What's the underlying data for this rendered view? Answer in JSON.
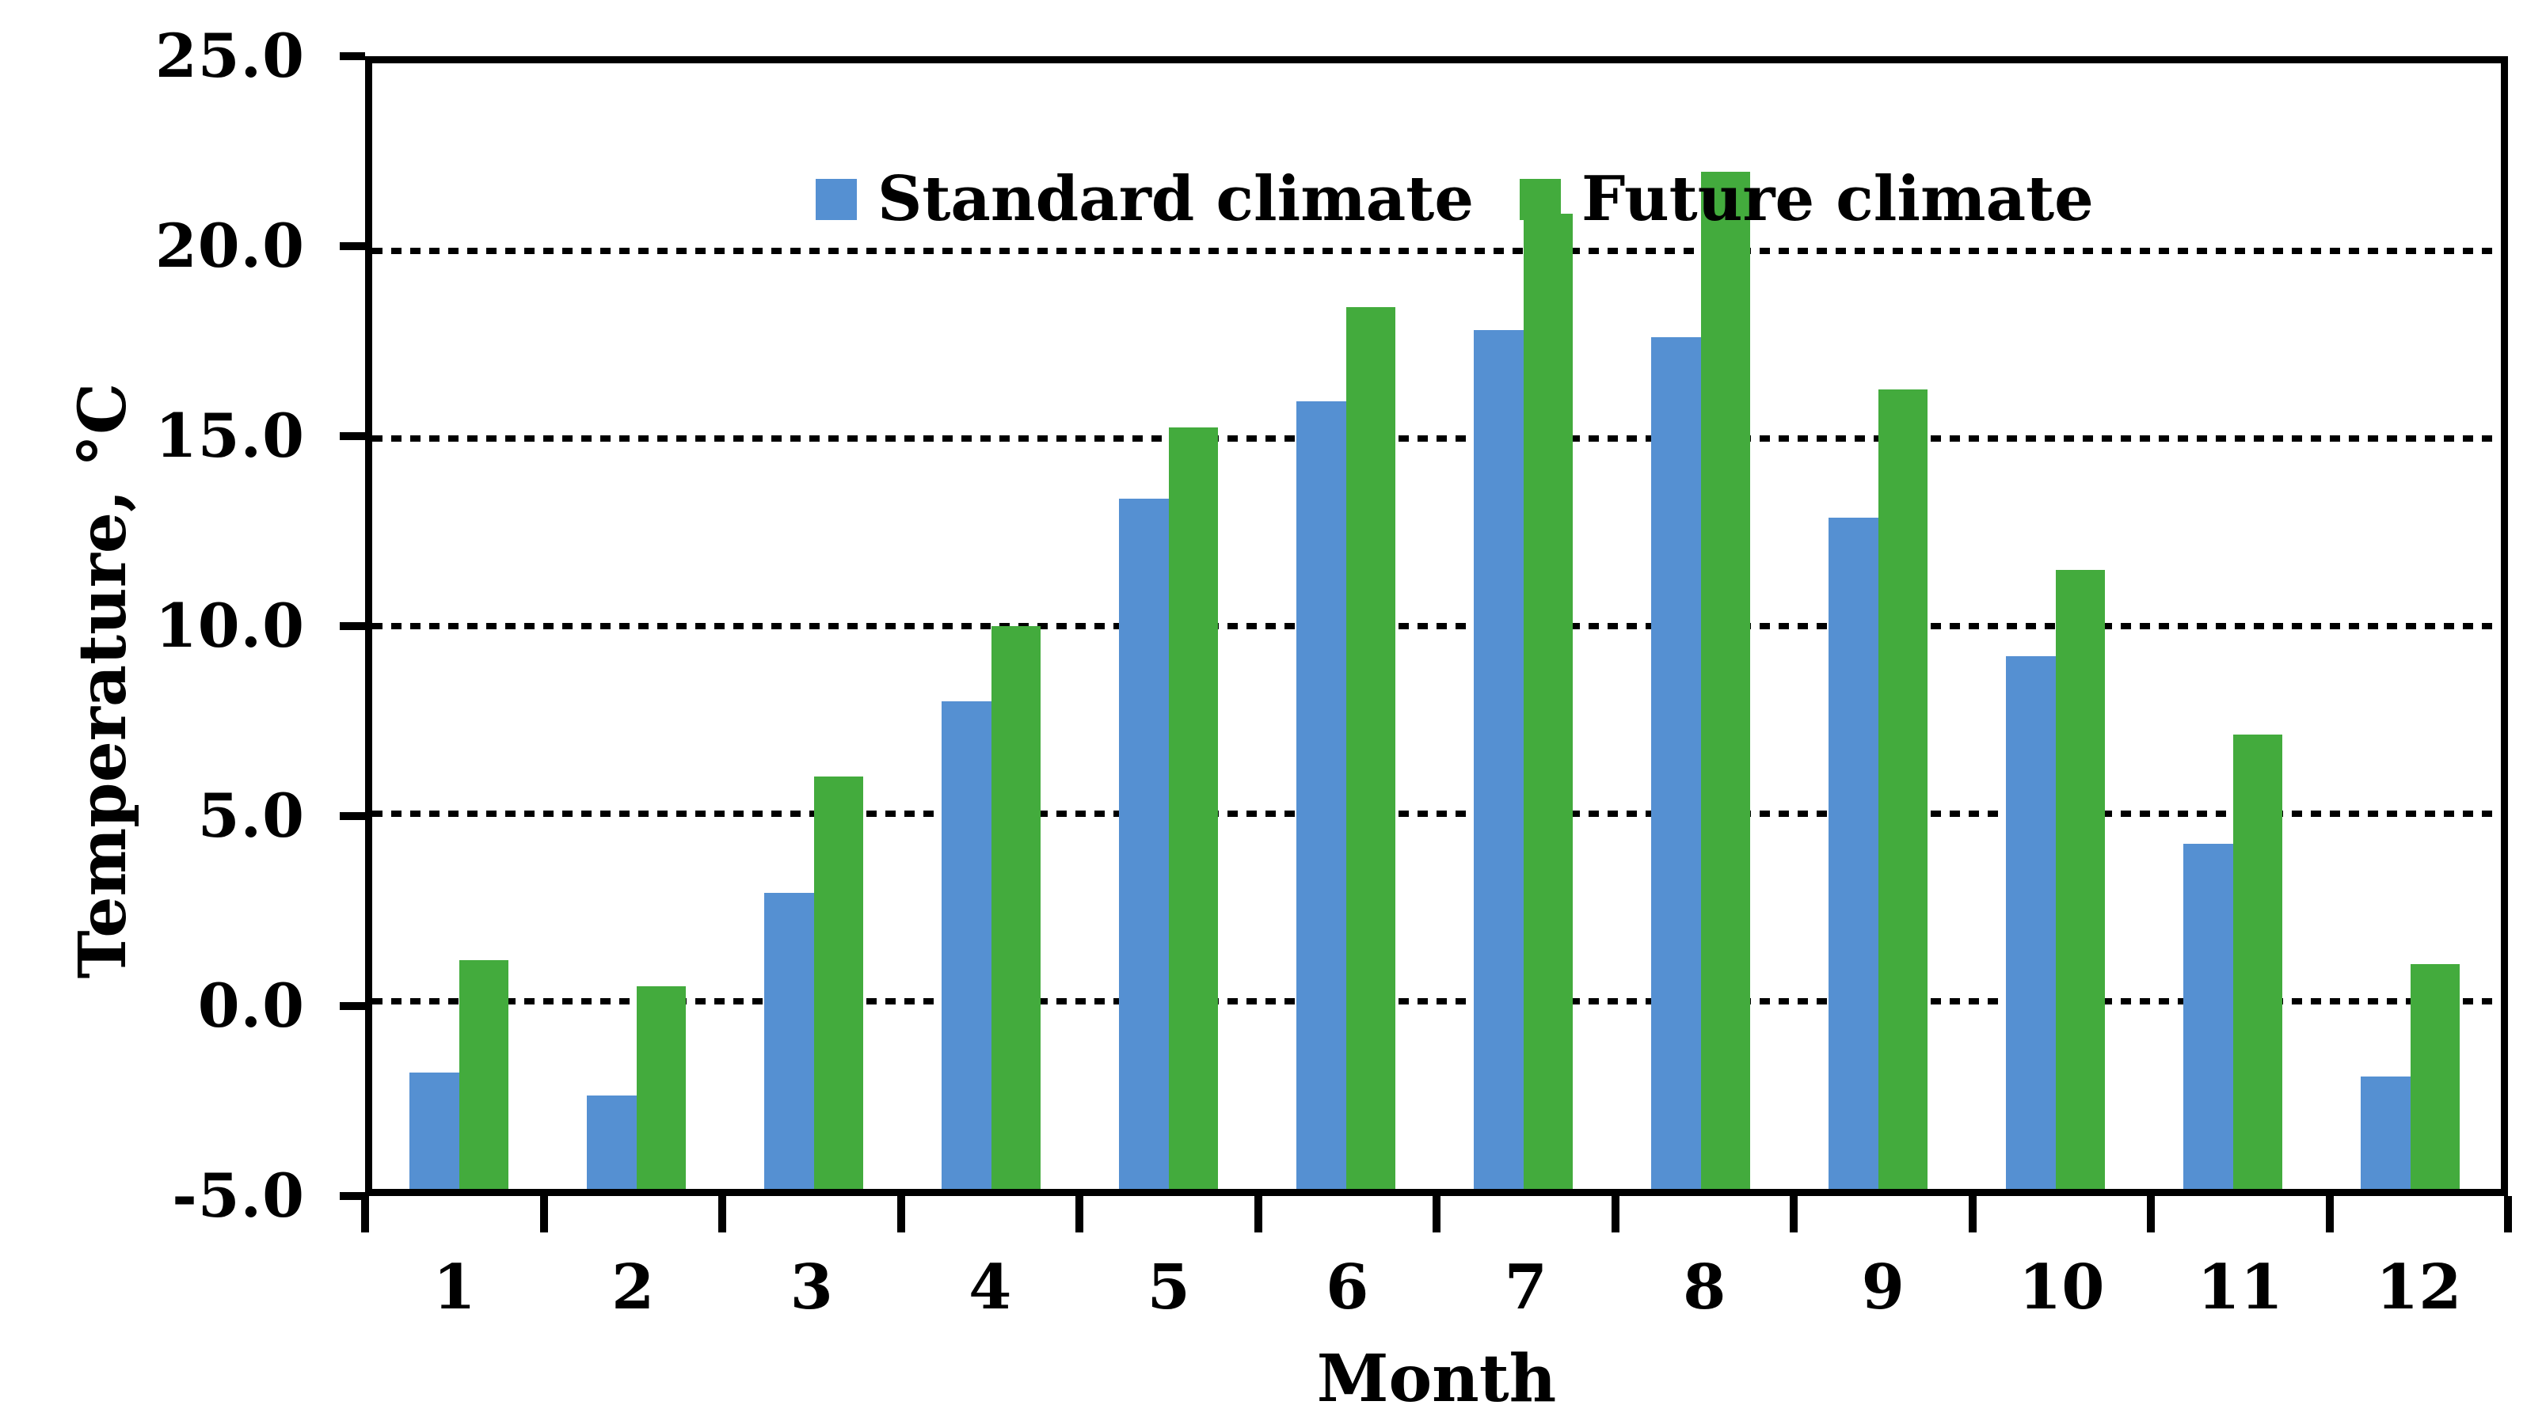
{
  "chart_data": {
    "type": "bar",
    "title": "",
    "xlabel": "Month",
    "ylabel": "Temperature, °C",
    "categories": [
      "1",
      "2",
      "3",
      "4",
      "5",
      "6",
      "7",
      "8",
      "9",
      "10",
      "11",
      "12"
    ],
    "series": [
      {
        "name": "Standard climate",
        "color": "#5590D2",
        "values": [
          -1.9,
          -2.5,
          2.9,
          8.0,
          13.4,
          16.0,
          17.9,
          17.7,
          12.9,
          9.2,
          4.2,
          -2.0
        ]
      },
      {
        "name": "Future climate",
        "color": "#43AB3D",
        "values": [
          1.1,
          0.4,
          6.0,
          10.0,
          15.3,
          18.5,
          21.0,
          22.1,
          16.3,
          11.5,
          7.1,
          1.0
        ]
      }
    ],
    "ylim": [
      -5.0,
      25.0
    ],
    "ytick_step": 5.0,
    "yticks": [
      "25.0",
      "20.0",
      "15.0",
      "10.0",
      "5.0",
      "0.0",
      "-5.0"
    ],
    "ytick_values": [
      25,
      20,
      15,
      10,
      5,
      0,
      -5
    ],
    "grid": "horizontal-dotted",
    "legend_position": "top-left-inside",
    "bar_baseline": -5.0,
    "axis_color": "#000000",
    "background_color": "#ffffff"
  }
}
